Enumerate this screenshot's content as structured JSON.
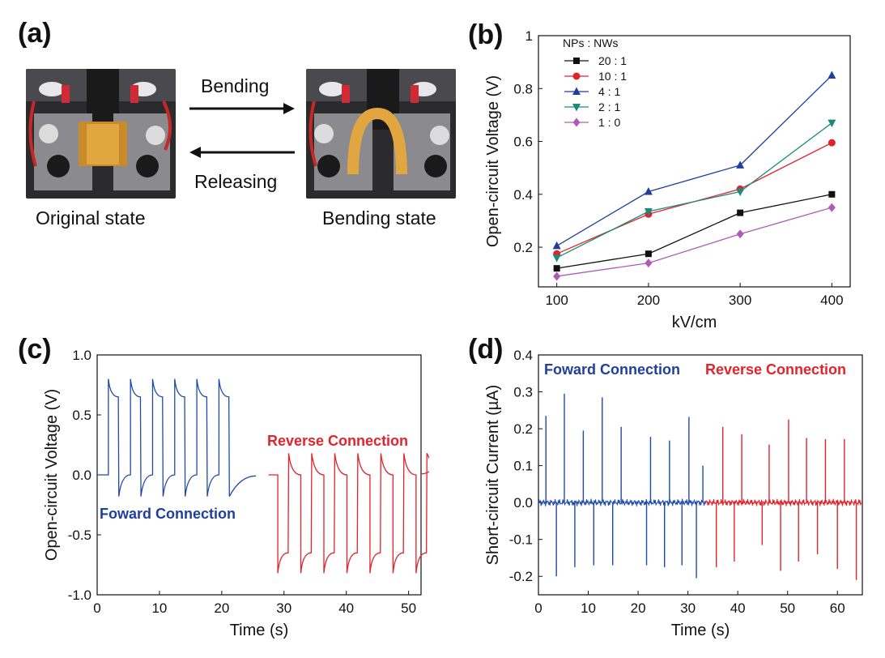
{
  "panels": {
    "a": {
      "label": "(a)",
      "arrow_top_label": "Bending",
      "arrow_bottom_label": "Releasing",
      "left_caption": "Original state",
      "right_caption": "Bending state"
    },
    "b": {
      "label": "(b)"
    },
    "c": {
      "label": "(c)"
    },
    "d": {
      "label": "(d)"
    }
  },
  "colors": {
    "black": "#111111",
    "red": "#e0242b",
    "blue": "#1f3f9a",
    "teal": "#1a8a7a",
    "purple": "#b05ab8",
    "fwd": "#1f4aa8",
    "rev": "#e0242b"
  },
  "chart_data": [
    {
      "id": "b",
      "type": "line",
      "title": "",
      "xlabel": "kV/cm",
      "ylabel": "Open-circuit Voltage (V)",
      "xlim": [
        80,
        420
      ],
      "ylim": [
        0.05,
        1.0
      ],
      "xticks": [
        100,
        200,
        300,
        400
      ],
      "yticks": [
        0.2,
        0.4,
        0.6,
        0.8,
        1.0
      ],
      "legend_title": "NPs : NWs",
      "legend_position": "top-left",
      "x": [
        100,
        200,
        300,
        400
      ],
      "series": [
        {
          "name": "20 : 1",
          "color": "#111111",
          "marker": "square",
          "values": [
            0.12,
            0.175,
            0.33,
            0.4
          ]
        },
        {
          "name": "10 : 1",
          "color": "#e0242b",
          "marker": "circle",
          "values": [
            0.175,
            0.325,
            0.42,
            0.595
          ]
        },
        {
          "name": "4 : 1",
          "color": "#1f3f9a",
          "marker": "triangle",
          "values": [
            0.205,
            0.41,
            0.51,
            0.85
          ]
        },
        {
          "name": "2 : 1",
          "color": "#1a8a7a",
          "marker": "triangle-down",
          "values": [
            0.16,
            0.335,
            0.41,
            0.67
          ]
        },
        {
          "name": "1 : 0",
          "color": "#b05ab8",
          "marker": "diamond",
          "values": [
            0.09,
            0.14,
            0.25,
            0.35
          ]
        }
      ]
    },
    {
      "id": "c",
      "type": "line",
      "title": "",
      "xlabel": "Time (s)",
      "ylabel": "Open-circuit Voltage (V)",
      "xlim": [
        0,
        52
      ],
      "ylim": [
        -1.0,
        1.0
      ],
      "xticks": [
        0,
        10,
        20,
        30,
        40,
        50
      ],
      "yticks": [
        -1.0,
        -0.5,
        0.0,
        0.5,
        1.0
      ],
      "ytick_labels": [
        "-1.0",
        "-0.5",
        "0.0",
        "0.5",
        "1.0"
      ],
      "annotations": [
        {
          "text": "Foward Connection",
          "color": "#1f3f9a"
        },
        {
          "text": "Reverse Connection",
          "color": "#e0242b"
        }
      ],
      "series": [
        {
          "name": "Foward Connection",
          "color": "#1f4aa8",
          "start": 1.8,
          "period": 3.55,
          "count": 6,
          "peak": 0.8,
          "plateau": 0.65,
          "neg": -0.18,
          "end": 25.5
        },
        {
          "name": "Reverse Connection",
          "color": "#e0242b",
          "start": 29.0,
          "period": 3.7,
          "count": 7,
          "peak": -0.82,
          "plateau": -0.65,
          "neg": 0.18,
          "end": 52
        }
      ]
    },
    {
      "id": "d",
      "type": "line",
      "title": "",
      "xlabel": "Time (s)",
      "ylabel": "Short-circuit Current (µA)",
      "xlim": [
        0,
        65
      ],
      "ylim": [
        -0.25,
        0.4
      ],
      "xticks": [
        0,
        10,
        20,
        30,
        40,
        50,
        60
      ],
      "yticks": [
        -0.2,
        -0.1,
        0.0,
        0.1,
        0.2,
        0.3,
        0.4
      ],
      "ytick_labels": [
        "-0.2",
        "-0.1",
        "0.0",
        "0.1",
        "0.2",
        "0.3",
        "0.4"
      ],
      "annotations": [
        {
          "text": "Foward Connection",
          "color": "#1f3f9a"
        },
        {
          "text": "Reverse Connection",
          "color": "#e0242b"
        }
      ],
      "series": [
        {
          "name": "Foward Connection",
          "color": "#1f4aa8",
          "xrange": [
            0,
            33.5
          ],
          "pos_peaks": [
            [
              1.5,
              0.235
            ],
            [
              5.2,
              0.295
            ],
            [
              9.0,
              0.195
            ],
            [
              12.8,
              0.285
            ],
            [
              16.6,
              0.205
            ],
            [
              22.5,
              0.178
            ],
            [
              26.3,
              0.168
            ],
            [
              30.2,
              0.232
            ],
            [
              33.0,
              0.1
            ]
          ],
          "neg_peaks": [
            [
              3.6,
              -0.2
            ],
            [
              7.3,
              -0.175
            ],
            [
              11.1,
              -0.17
            ],
            [
              14.9,
              -0.17
            ],
            [
              21.7,
              -0.17
            ],
            [
              25.3,
              -0.175
            ],
            [
              28.8,
              -0.17
            ],
            [
              31.7,
              -0.205
            ]
          ]
        },
        {
          "name": "Reverse Connection",
          "color": "#e0242b",
          "xrange": [
            33.5,
            65
          ],
          "pos_peaks": [
            [
              37.0,
              0.205
            ],
            [
              40.8,
              0.185
            ],
            [
              46.3,
              0.157
            ],
            [
              50.2,
              0.225
            ],
            [
              53.8,
              0.175
            ],
            [
              57.6,
              0.172
            ],
            [
              61.4,
              0.172
            ]
          ],
          "neg_peaks": [
            [
              35.7,
              -0.175
            ],
            [
              39.3,
              -0.16
            ],
            [
              44.9,
              -0.115
            ],
            [
              48.6,
              -0.185
            ],
            [
              52.2,
              -0.16
            ],
            [
              56.0,
              -0.14
            ],
            [
              60.0,
              -0.18
            ],
            [
              63.8,
              -0.21
            ]
          ]
        }
      ]
    }
  ]
}
